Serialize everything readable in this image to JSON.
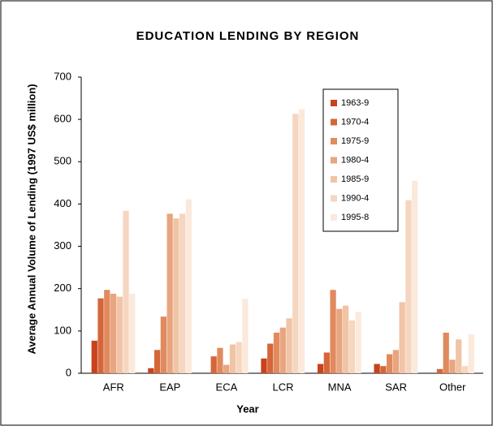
{
  "chart_data": {
    "type": "bar",
    "title": "EDUCATION LENDING BY REGION",
    "x_label": "Year",
    "y_label": "Average Annual Volume of Lending (1997 US$  million)",
    "categories": [
      "AFR",
      "EAP",
      "ECA",
      "LCR",
      "MNA",
      "SAR",
      "Other"
    ],
    "series": [
      {
        "name": "1963-9",
        "color": "#c8421e",
        "values": [
          77,
          12,
          0,
          35,
          22,
          22,
          0
        ]
      },
      {
        "name": "1970-4",
        "color": "#d5663a",
        "values": [
          177,
          55,
          40,
          70,
          49,
          17,
          10
        ]
      },
      {
        "name": "1975-9",
        "color": "#e08a5e",
        "values": [
          197,
          134,
          60,
          96,
          197,
          45,
          96
        ]
      },
      {
        "name": "1980-4",
        "color": "#e8a57f",
        "values": [
          188,
          377,
          20,
          108,
          152,
          55,
          32
        ]
      },
      {
        "name": "1985-9",
        "color": "#f0c4a5",
        "values": [
          181,
          366,
          68,
          130,
          160,
          168,
          80
        ]
      },
      {
        "name": "1990-4",
        "color": "#f5d6c0",
        "values": [
          384,
          377,
          74,
          613,
          125,
          409,
          17
        ]
      },
      {
        "name": "1995-8",
        "color": "#fbe9dc",
        "values": [
          188,
          411,
          176,
          624,
          145,
          455,
          92
        ]
      }
    ],
    "ylim": [
      0,
      700
    ],
    "yticks": [
      0,
      100,
      200,
      300,
      400,
      500,
      600,
      700
    ],
    "grid": false,
    "legend": "upper right"
  }
}
